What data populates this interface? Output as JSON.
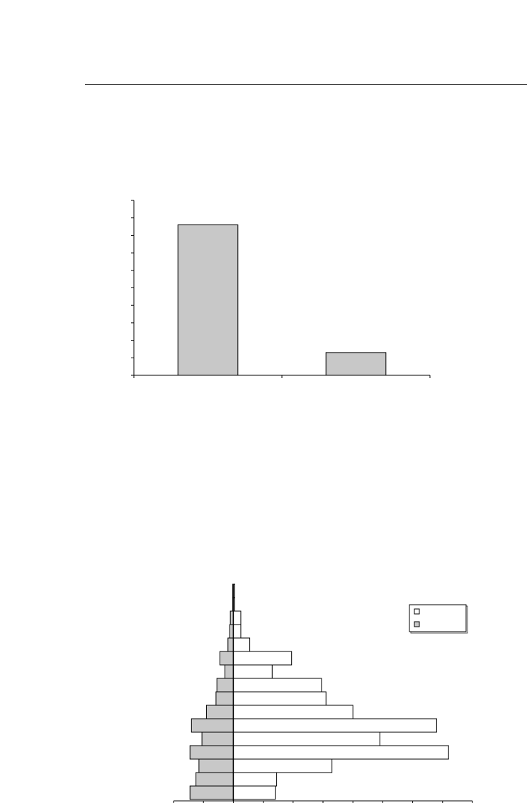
{
  "page": {
    "background": "#ffffff",
    "rule_color": "#333333"
  },
  "chart_data": [
    {
      "type": "bar",
      "title": "",
      "xlabel": "",
      "ylabel": "",
      "categories": [
        "",
        ""
      ],
      "values": [
        8.6,
        1.3
      ],
      "ylim": [
        0,
        10
      ],
      "y_tick_count": 11,
      "grid": false,
      "bar_fill": "#c8c8c8",
      "bar_stroke": "#000000"
    },
    {
      "type": "bar",
      "orientation": "horizontal",
      "layout": "population-pyramid",
      "title": "",
      "xlabel": "",
      "ylabel": "",
      "categories": [
        "",
        "",
        "",
        "",
        "",
        "",
        "",
        "",
        "",
        "",
        "",
        "",
        "",
        "",
        "",
        ""
      ],
      "xlim": [
        -2,
        8
      ],
      "x_tick_step": 1,
      "grid": false,
      "legend": {
        "position": "top-right",
        "entries": [
          "",
          ""
        ]
      },
      "series": [
        {
          "color": "#ffffff",
          "direction": "right",
          "values": [
            0.05,
            0.05,
            0.25,
            0.25,
            0.55,
            1.95,
            1.3,
            2.95,
            3.1,
            4.0,
            6.8,
            4.9,
            7.2,
            3.3,
            1.45,
            1.4
          ]
        },
        {
          "color": "#c8c8c8",
          "direction": "left",
          "values": [
            0.02,
            0.02,
            0.1,
            0.12,
            0.18,
            0.45,
            0.28,
            0.55,
            0.58,
            0.9,
            1.4,
            1.05,
            1.45,
            1.15,
            1.25,
            1.45
          ]
        }
      ]
    }
  ]
}
